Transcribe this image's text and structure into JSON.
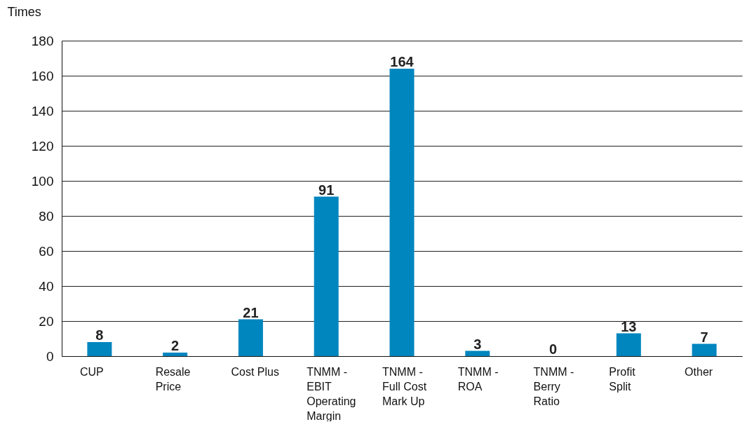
{
  "chart_data": {
    "type": "bar",
    "ylabel": "Times",
    "categories": [
      "CUP",
      "Resale Price",
      "Cost Plus",
      "TNMM - EBIT Operating Margin",
      "TNMM - Full Cost Mark Up",
      "TNMM - ROA",
      "TNMM - Berry Ratio",
      "Profit Split",
      "Other"
    ],
    "values": [
      8,
      2,
      21,
      91,
      164,
      3,
      0,
      13,
      7
    ],
    "color": "#0086bf",
    "ylim": [
      0,
      180
    ],
    "yticks": [
      0,
      20,
      40,
      60,
      80,
      100,
      120,
      140,
      160,
      180
    ],
    "grid": "y",
    "data_labels": true
  }
}
